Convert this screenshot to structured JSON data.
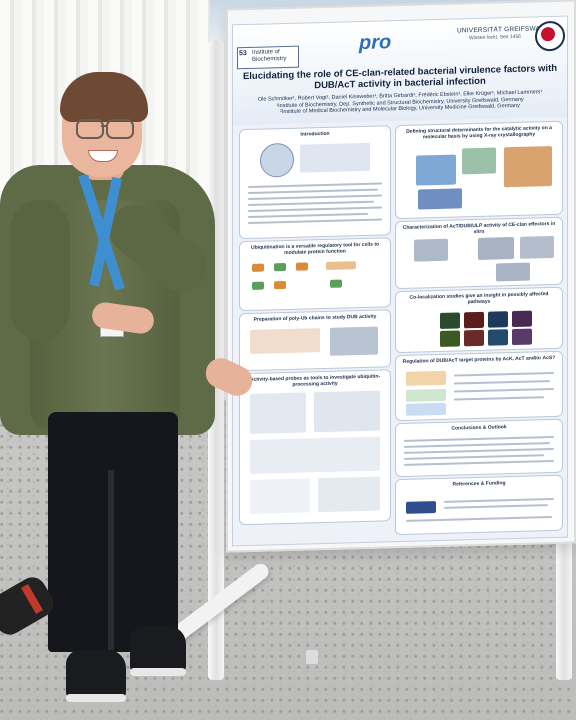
{
  "poster": {
    "institute_label": "Institute of Biochemistry",
    "institute_logo_text": "53",
    "brand_logo": "pro",
    "university": "UNIVERSITÄT GREIFSWALD",
    "university_sub": "Wissen lockt. Seit 1456",
    "title": "Elucidating the role of CE-clan-related bacterial virulence factors with DUB/AcT activity in bacterial infection",
    "authors": "Ole Schmöker¹, Robert Vogt¹, Daniel Kinsweber¹, Britta Girbardt¹, Frédéric Ebstein¹, Elke Krüger¹, Michael Lammers¹",
    "affiliation1": "¹Institute of Biochemistry, Dep. Synthetic and Structural Biochemistry, University Greifswald, Germany",
    "affiliation2": "²Institute of Medical Biochemistry and Molecular Biology, University Medicine Greifswald, Germany",
    "sections": {
      "introduction": "Introduction",
      "ubiquitination": "Ubiquitination is a versatile regulatory tool for cells to modulate protein function",
      "probes": "Preparation of poly-Ub chains to study DUB activity",
      "activity": "Activity-based probes as tools to investigate ubiquitin-processing activity",
      "structure": "Defining structural determinants for the catalytic activity on a molecular basis by using X-ray crystallography",
      "characterization": "Characterization of AcT/DUB/ULP activity of CE-clan effectors in vitro",
      "colocalization": "Co-localization studies give an insight in possibly affected pathways",
      "regulation": "Regulation of DUB/AcT target proteins by AcK, AcT and/or AcS?",
      "conclusions": "Conclusions & Outlook",
      "references": "References & Funding"
    }
  },
  "colors": {
    "poster_accent": "#2d6fb7",
    "title_text": "#11233f",
    "shirt": "#5f6b47",
    "lanyard": "#3d8fd1"
  }
}
